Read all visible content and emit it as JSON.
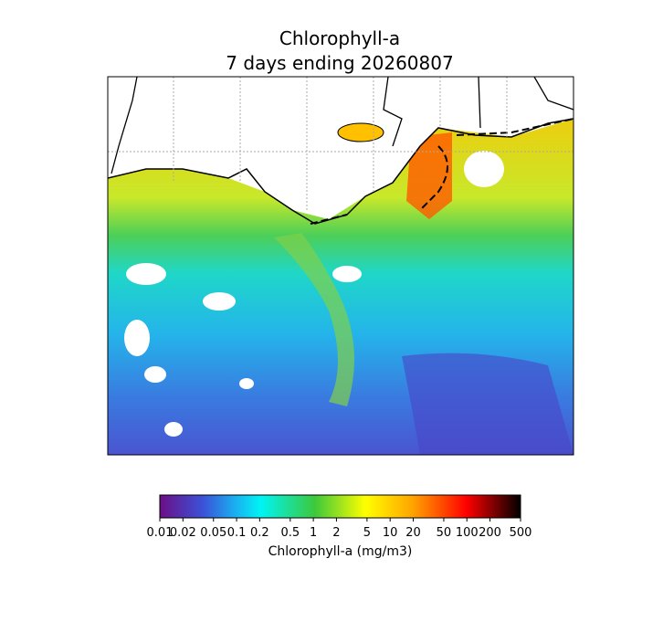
{
  "title": [
    "Chlorophyll-a",
    "7 days ending 20260807"
  ],
  "colorbar": {
    "label": "Chlorophyll-a (mg/m3)",
    "scale": "log",
    "lim": [
      0.01,
      500
    ],
    "ticks": [
      0.01,
      0.02,
      0.05,
      0.1,
      0.2,
      0.5,
      1,
      2,
      5,
      10,
      20,
      50,
      100,
      200,
      500
    ]
  }
}
